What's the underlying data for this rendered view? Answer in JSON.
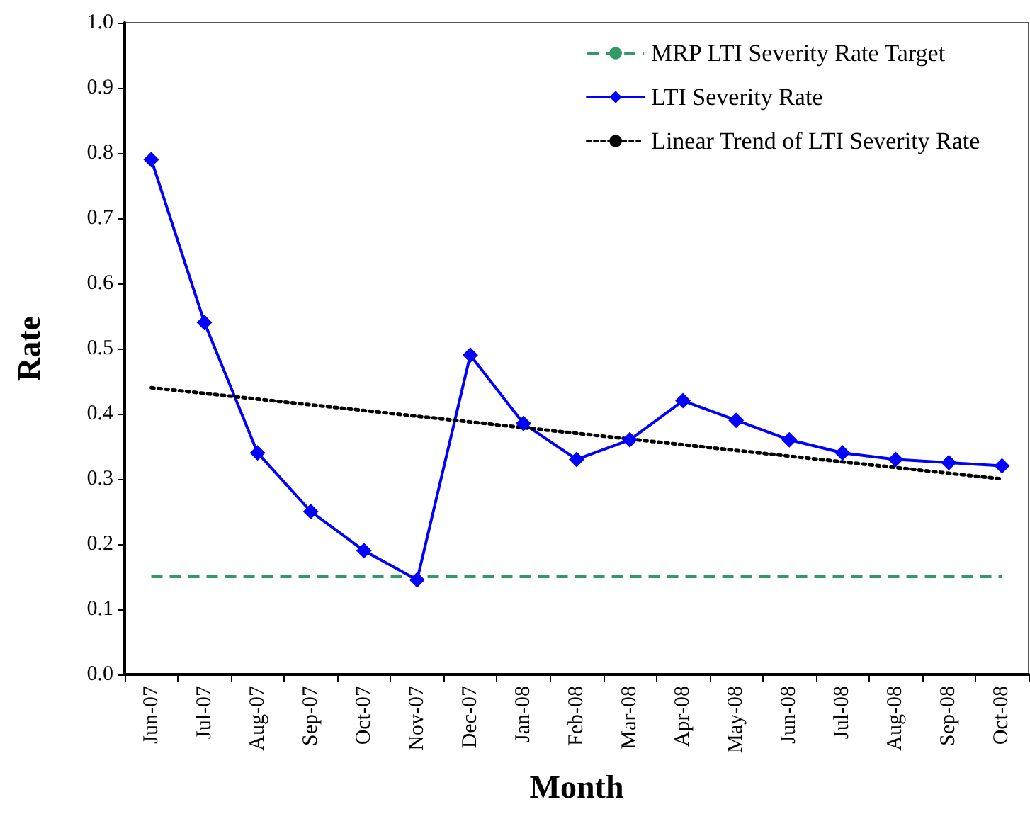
{
  "chart_data": {
    "type": "line",
    "xlabel": "Month",
    "ylabel": "Rate",
    "categories": [
      "Jun-07",
      "Jul-07",
      "Aug-07",
      "Sep-07",
      "Oct-07",
      "Nov-07",
      "Dec-07",
      "Jan-08",
      "Feb-08",
      "Mar-08",
      "Apr-08",
      "May-08",
      "Jun-08",
      "Jul-08",
      "Aug-08",
      "Sep-08",
      "Oct-08"
    ],
    "series": [
      {
        "name": "LTI Severity Rate",
        "color": "#0000ff",
        "marker": "diamond",
        "line_style": "solid",
        "values": [
          0.79,
          0.54,
          0.34,
          0.25,
          0.19,
          0.145,
          0.49,
          0.385,
          0.33,
          0.36,
          0.42,
          0.39,
          0.36,
          0.34,
          0.33,
          0.325,
          0.32
        ]
      },
      {
        "name": "Linear Trend of LTI Severity Rate",
        "color": "#000000",
        "marker": "none",
        "line_style": "dotted",
        "x": [
          "Jun-07",
          "Oct-08"
        ],
        "values": [
          0.44,
          0.3
        ]
      }
    ],
    "ref_lines": [
      {
        "axis": "y",
        "value": 0.15,
        "label": "MRP LTI Severity Rate Target",
        "color": "#339966",
        "line_style": "dashed"
      }
    ],
    "ylim": [
      0,
      1
    ],
    "yticks": [
      {
        "value": 0,
        "label": "0.0"
      },
      {
        "value": 0.1,
        "label": "0.1"
      },
      {
        "value": 0.2,
        "label": "0.2"
      },
      {
        "value": 0.3,
        "label": "0.3"
      },
      {
        "value": 0.4,
        "label": "0.4"
      },
      {
        "value": 0.5,
        "label": "0.5"
      },
      {
        "value": 0.6,
        "label": "0.6"
      },
      {
        "value": 0.7,
        "label": "0.7"
      },
      {
        "value": 0.8,
        "label": "0.8"
      },
      {
        "value": 0.9,
        "label": "0.9"
      },
      {
        "value": 1,
        "label": "1.0"
      }
    ],
    "grid": false,
    "legend": "top right"
  }
}
